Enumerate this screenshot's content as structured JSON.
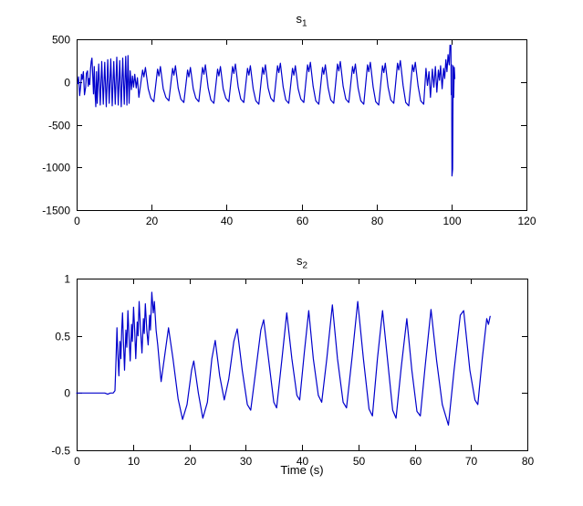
{
  "figure": {
    "background": "#ffffff",
    "axis_color": "#000000",
    "line_color": "#0000cc"
  },
  "chart_data": [
    {
      "type": "line",
      "title_main": "s",
      "title_sub": "1",
      "xlabel": "",
      "ylabel": "",
      "xlim": [
        0,
        120
      ],
      "ylim": [
        -1500,
        500
      ],
      "xticks": [
        0,
        20,
        40,
        60,
        80,
        100,
        120
      ],
      "yticks": [
        500,
        0,
        -500,
        -1000,
        -1500
      ],
      "grid": false,
      "legend": null,
      "series": [
        {
          "name": "s1",
          "x": [
            0.3,
            0.5,
            0.8,
            1.1,
            1.3,
            1.5,
            1.8,
            2.1,
            2.4,
            2.6,
            2.9,
            3.1,
            3.3,
            3.5,
            3.7,
            3.9,
            4.1,
            4.3,
            4.5,
            4.7,
            4.9,
            5.1,
            5.3,
            5.5,
            5.9,
            6.3,
            6.7,
            7.1,
            7.5,
            7.9,
            8.3,
            8.7,
            9.1,
            9.5,
            9.9,
            10.3,
            10.7,
            11.1,
            11.5,
            11.9,
            12.3,
            12.7,
            13.1,
            13.4,
            13.7,
            14.0,
            14.3,
            14.6,
            14.9,
            15.2,
            15.5,
            15.9,
            16.2,
            16.6,
            17.6,
            17.95,
            18.35,
            19.1,
            19.8,
            20.6,
            21.6,
            21.95,
            22.35,
            23.1,
            23.8,
            24.6,
            25.6,
            25.95,
            26.35,
            27.1,
            27.8,
            28.6,
            29.6,
            29.95,
            30.35,
            31.1,
            31.8,
            32.6,
            33.6,
            33.95,
            34.35,
            35.1,
            35.8,
            36.6,
            37.6,
            37.95,
            38.35,
            39.1,
            39.8,
            40.6,
            41.6,
            41.95,
            42.35,
            43.1,
            43.8,
            44.6,
            45.6,
            45.95,
            46.35,
            47.1,
            47.8,
            48.6,
            49.6,
            49.95,
            50.35,
            51.1,
            51.8,
            52.6,
            53.6,
            53.95,
            54.35,
            55.1,
            55.8,
            56.6,
            57.6,
            57.95,
            58.35,
            59.1,
            59.8,
            60.6,
            61.6,
            61.95,
            62.35,
            63.1,
            63.8,
            64.6,
            65.6,
            65.95,
            66.35,
            67.1,
            67.8,
            68.6,
            69.6,
            69.95,
            70.35,
            71.1,
            71.8,
            72.6,
            73.6,
            73.95,
            74.35,
            75.1,
            75.8,
            76.6,
            77.6,
            77.95,
            78.35,
            79.1,
            79.8,
            80.6,
            81.6,
            81.95,
            82.35,
            83.1,
            83.8,
            84.6,
            85.6,
            85.95,
            86.35,
            87.1,
            87.8,
            88.6,
            89.6,
            89.95,
            90.35,
            91.1,
            91.8,
            92.6,
            93.2,
            93.6,
            94.0,
            94.4,
            94.9,
            95.3,
            95.7,
            96.1,
            96.5,
            96.8,
            97.1,
            97.5,
            97.9,
            98.2,
            98.5,
            98.8,
            99.1,
            99.4,
            99.6,
            99.75,
            99.85,
            99.95,
            100.05,
            100.15,
            100.3,
            100.45,
            100.6,
            100.75,
            100.9
          ],
          "y": [
            -20,
            60,
            -160,
            -40,
            90,
            30,
            120,
            -150,
            -60,
            100,
            130,
            -50,
            40,
            -30,
            150,
            240,
            280,
            60,
            -140,
            180,
            -120,
            -290,
            120,
            -250,
            210,
            -270,
            240,
            -260,
            230,
            -290,
            260,
            -250,
            270,
            -280,
            240,
            -260,
            290,
            -270,
            250,
            -290,
            280,
            -260,
            300,
            -270,
            310,
            -250,
            130,
            -90,
            70,
            -60,
            90,
            -70,
            50,
            -180,
            140,
            60,
            170,
            -80,
            -190,
            -230,
            150,
            70,
            180,
            -80,
            -180,
            -220,
            160,
            80,
            190,
            -70,
            -200,
            -240,
            140,
            60,
            170,
            -80,
            -190,
            -230,
            170,
            90,
            200,
            -70,
            -210,
            -250,
            150,
            70,
            180,
            -80,
            -190,
            -230,
            180,
            100,
            210,
            -60,
            -200,
            -240,
            160,
            80,
            190,
            -80,
            -220,
            -260,
            170,
            90,
            200,
            -70,
            -190,
            -230,
            190,
            110,
            220,
            -60,
            -210,
            -250,
            160,
            80,
            190,
            -80,
            -200,
            -240,
            200,
            120,
            230,
            -50,
            -220,
            -260,
            170,
            90,
            200,
            -70,
            -210,
            -250,
            210,
            130,
            240,
            -50,
            -200,
            -240,
            180,
            100,
            210,
            -70,
            -220,
            -260,
            200,
            120,
            230,
            -60,
            -230,
            -270,
            190,
            110,
            220,
            -60,
            -210,
            -250,
            220,
            140,
            250,
            -40,
            -240,
            -280,
            200,
            120,
            230,
            -50,
            -220,
            -260,
            160,
            -40,
            120,
            -180,
            150,
            -60,
            180,
            -120,
            140,
            20,
            190,
            -80,
            160,
            40,
            260,
            120,
            320,
            200,
            430,
            390,
            430,
            -150,
            200,
            -1100,
            -1020,
            190,
            -180,
            170,
            40
          ]
        }
      ]
    },
    {
      "type": "line",
      "title_main": "s",
      "title_sub": "2",
      "xlabel": "Time (s)",
      "ylabel": "",
      "xlim": [
        0,
        80
      ],
      "ylim": [
        -0.5,
        1
      ],
      "xticks": [
        0,
        10,
        20,
        30,
        40,
        50,
        60,
        70,
        80
      ],
      "yticks": [
        1,
        0.5,
        0,
        -0.5
      ],
      "grid": false,
      "legend": null,
      "series": [
        {
          "name": "s2",
          "x": [
            0,
            1,
            2,
            3,
            4,
            5,
            5.5,
            6,
            6.5,
            6.8,
            7.0,
            7.15,
            7.3,
            7.5,
            7.7,
            7.85,
            8.0,
            8.15,
            8.3,
            8.5,
            8.75,
            8.9,
            9.1,
            9.3,
            9.5,
            9.75,
            9.9,
            10.1,
            10.3,
            10.5,
            10.75,
            10.9,
            11.1,
            11.35,
            11.6,
            11.85,
            12.0,
            12.2,
            12.45,
            12.7,
            12.95,
            13.1,
            13.35,
            13.6,
            13.8,
            14.1,
            14.4,
            14.7,
            15.0,
            15.7,
            16.3,
            17.1,
            18.0,
            18.8,
            19.6,
            20.4,
            20.8,
            21.6,
            22.4,
            23.2,
            24.0,
            24.6,
            25.4,
            26.2,
            27.0,
            27.9,
            28.5,
            29.4,
            30.3,
            30.9,
            31.8,
            32.7,
            33.2,
            34.1,
            35.0,
            35.5,
            36.4,
            37.3,
            38.2,
            39.1,
            39.6,
            40.4,
            41.2,
            42.0,
            42.9,
            43.5,
            44.4,
            45.4,
            46.3,
            47.3,
            47.9,
            48.9,
            49.9,
            50.9,
            51.9,
            52.5,
            53.4,
            54.3,
            55.2,
            56.1,
            56.7,
            57.6,
            58.6,
            59.5,
            60.4,
            61.0,
            61.9,
            62.9,
            63.9,
            64.9,
            66.0,
            67.0,
            68.1,
            68.7,
            69.8,
            70.7,
            71.2,
            72.0,
            72.8,
            73.1,
            73.4
          ],
          "y": [
            0,
            0,
            0,
            0,
            0,
            0,
            -0.01,
            0,
            0,
            0.02,
            0.3,
            0.57,
            0.35,
            0.15,
            0.45,
            0.3,
            0.55,
            0.7,
            0.45,
            0.2,
            0.55,
            0.4,
            0.72,
            0.5,
            0.28,
            0.6,
            0.45,
            0.75,
            0.55,
            0.3,
            0.62,
            0.5,
            0.8,
            0.55,
            0.35,
            0.65,
            0.52,
            0.78,
            0.55,
            0.42,
            0.68,
            0.55,
            0.88,
            0.7,
            0.8,
            0.55,
            0.42,
            0.25,
            0.1,
            0.35,
            0.57,
            0.3,
            -0.05,
            -0.23,
            -0.1,
            0.2,
            0.28,
            0.0,
            -0.22,
            -0.08,
            0.3,
            0.46,
            0.15,
            -0.06,
            0.12,
            0.45,
            0.56,
            0.2,
            -0.1,
            -0.15,
            0.2,
            0.55,
            0.64,
            0.28,
            -0.08,
            -0.13,
            0.28,
            0.7,
            0.3,
            -0.02,
            -0.06,
            0.35,
            0.72,
            0.3,
            -0.02,
            -0.08,
            0.3,
            0.77,
            0.3,
            -0.08,
            -0.13,
            0.32,
            0.8,
            0.3,
            -0.14,
            -0.2,
            0.3,
            0.72,
            0.28,
            -0.15,
            -0.22,
            0.22,
            0.65,
            0.2,
            -0.16,
            -0.2,
            0.25,
            0.73,
            0.28,
            -0.1,
            -0.28,
            0.2,
            0.68,
            0.72,
            0.2,
            -0.06,
            -0.1,
            0.3,
            0.65,
            0.6,
            0.67
          ]
        }
      ]
    }
  ]
}
